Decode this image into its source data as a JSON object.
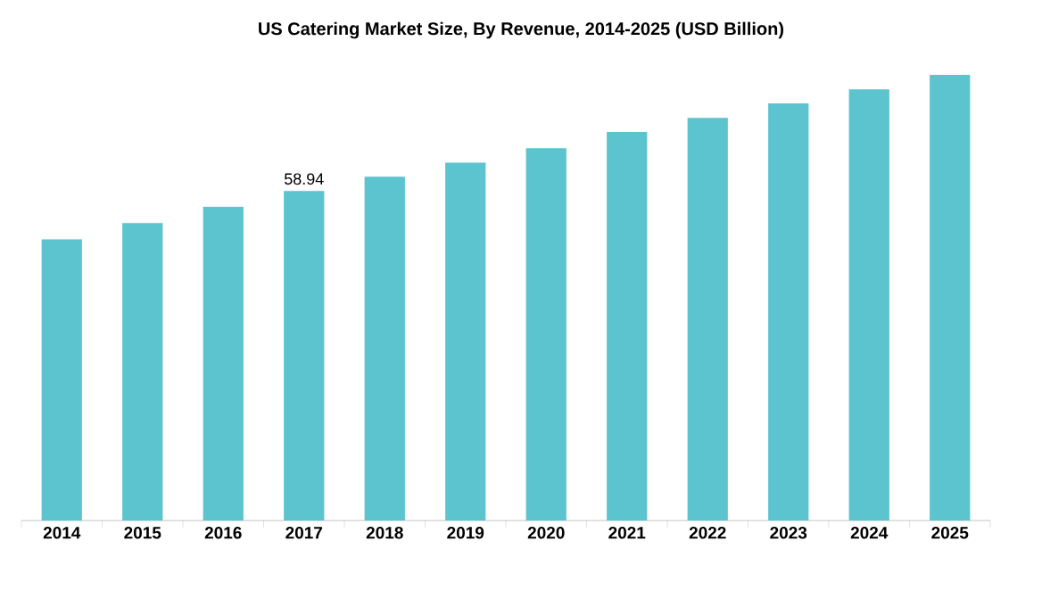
{
  "chart_data": {
    "type": "bar",
    "title": "US Catering Market Size, By Revenue, 2014-2025 (USD Billion)",
    "categories": [
      "2014",
      "2015",
      "2016",
      "2017",
      "2018",
      "2019",
      "2020",
      "2021",
      "2022",
      "2023",
      "2024",
      "2025"
    ],
    "values": [
      50.3,
      53.2,
      56.1,
      58.94,
      61.5,
      64.0,
      66.6,
      69.5,
      72.0,
      74.6,
      77.1,
      79.7
    ],
    "value_labels": [
      null,
      null,
      null,
      "58.94",
      null,
      null,
      null,
      null,
      null,
      null,
      null,
      null
    ],
    "color": "#5bc4ce"
  }
}
